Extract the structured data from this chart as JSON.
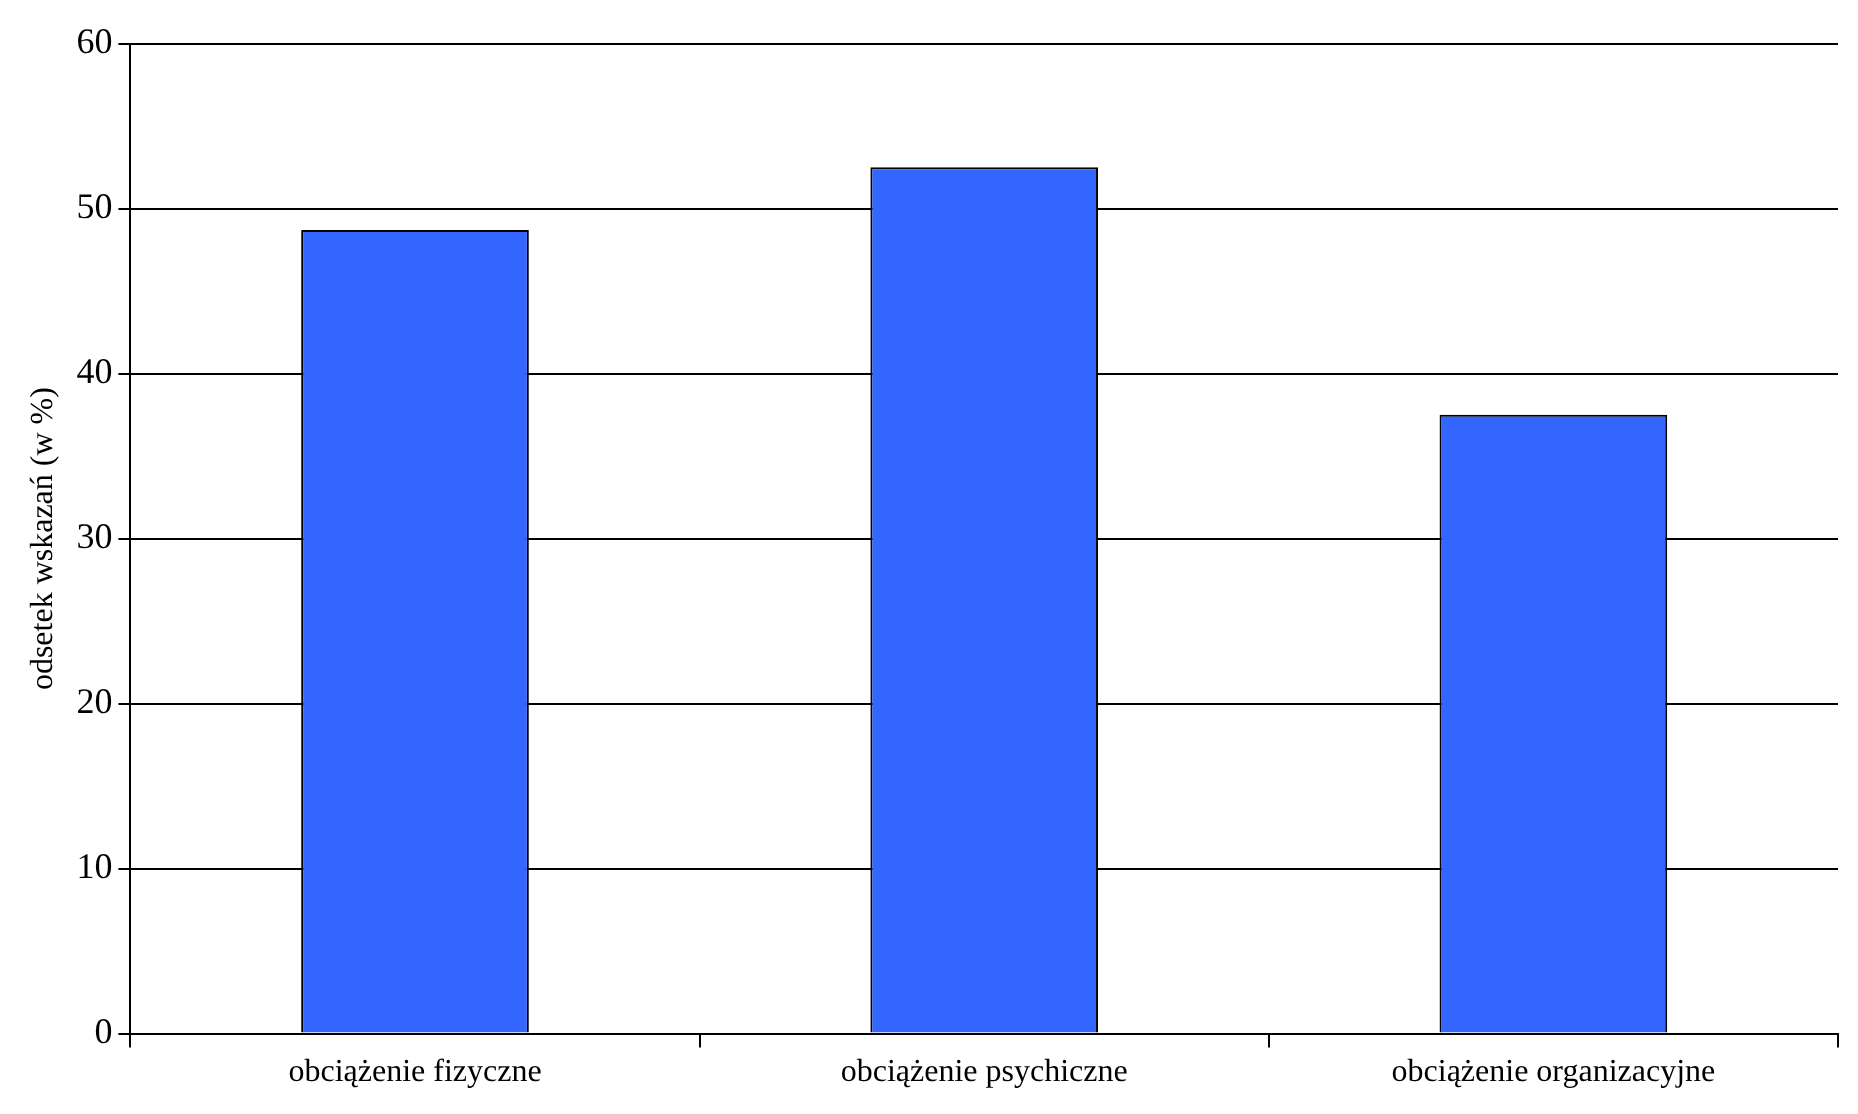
{
  "chart_data": {
    "type": "bar",
    "ylabel": "odsetek wskazań (w %)",
    "categories": [
      "obciążenie fizyczne",
      "obciążenie psychiczne",
      "obciążenie organizacyjne"
    ],
    "values": [
      48.7,
      52.5,
      37.5
    ],
    "color": "#3366ff",
    "ylim": [
      0,
      60
    ],
    "yticks": [
      0,
      10,
      20,
      30,
      40,
      50,
      60
    ],
    "grid": "y"
  }
}
